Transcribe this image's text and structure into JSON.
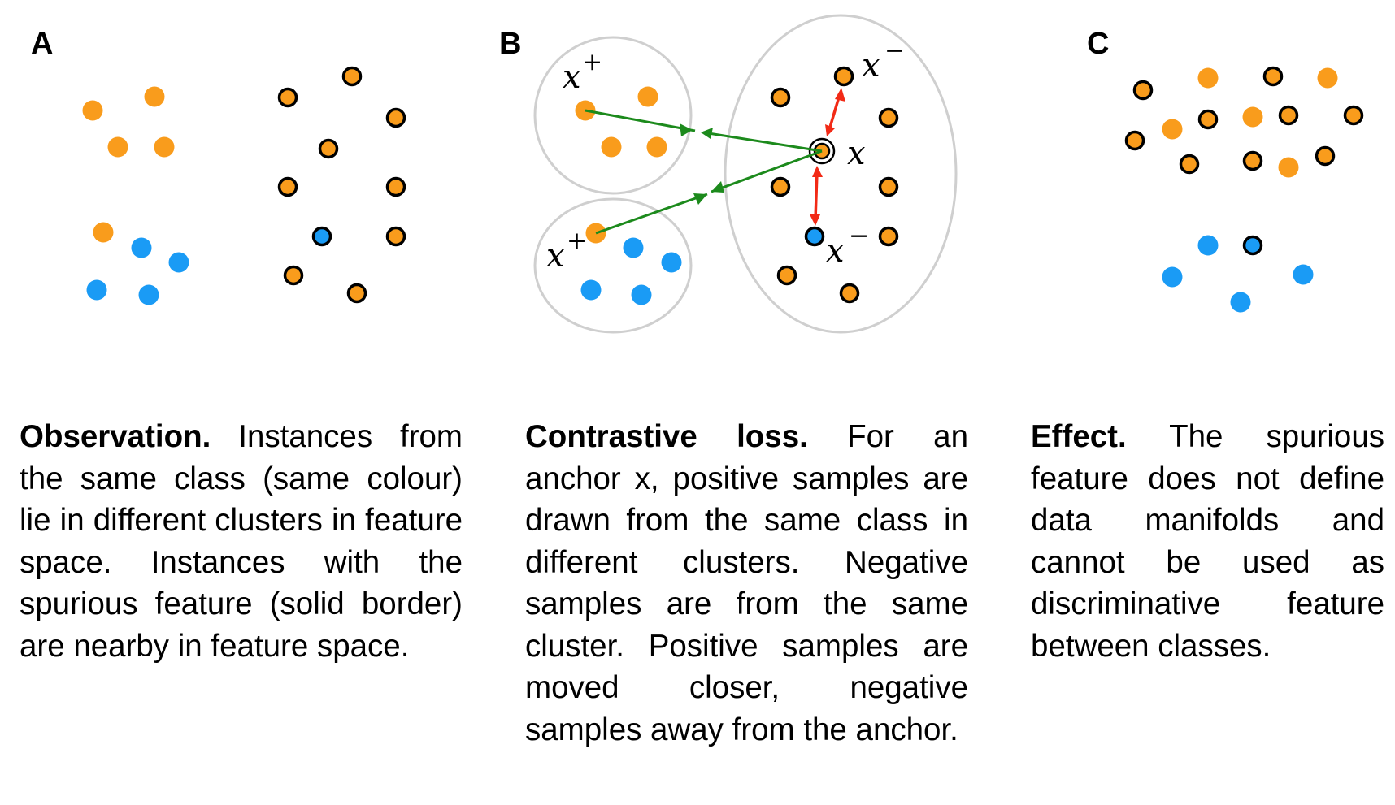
{
  "colors": {
    "class_orange": "#F99C1C",
    "class_blue": "#1A9BF5",
    "spurious_border": "#000000",
    "cluster_outline": "#CFCFCF",
    "positive_arrow": "#1C8A1C",
    "negative_arrow": "#F22A16"
  },
  "panels": {
    "a": {
      "letter": "A",
      "caption_lead": "Observation.",
      "caption_body": "Instances from the same class (same colour) lie in different clusters in feature space. Instances with the spurious feature (solid border) are nearby in feature space."
    },
    "b": {
      "letter": "B",
      "labels": {
        "pos_top_base": "x",
        "pos_top_sup": "+",
        "pos_bottom_base": "x",
        "pos_bottom_sup": "+",
        "anchor": "x",
        "neg_top_base": "x",
        "neg_top_sup": "−",
        "neg_bottom_base": "x",
        "neg_bottom_sup": "−"
      },
      "caption_lead": "Contrastive loss.",
      "caption_body": "For an anchor x, positive samples are drawn from the same class in different clusters. Negative samples are from the same cluster. Positive samples are moved closer, negative samples away from the anchor."
    },
    "c": {
      "letter": "C",
      "caption_lead": "Effect.",
      "caption_body": "The spurious feature does not define data manifolds and cannot be used as discriminative feature between classes."
    }
  }
}
